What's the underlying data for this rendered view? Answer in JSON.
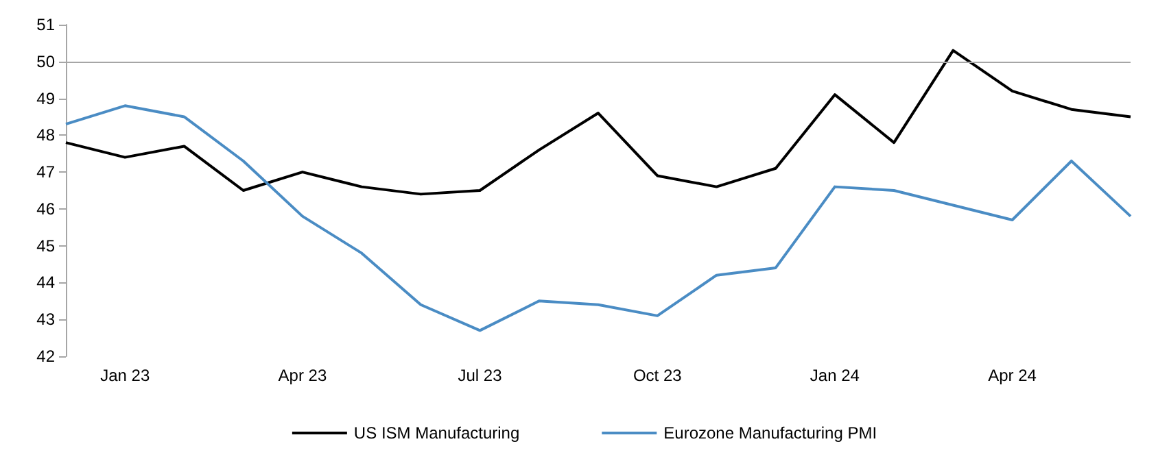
{
  "chart_data": {
    "type": "line",
    "categories": [
      null,
      "Jan 23",
      null,
      null,
      "Apr 23",
      null,
      null,
      "Jul 23",
      null,
      null,
      "Oct 23",
      null,
      null,
      "Jan 24",
      null,
      null,
      "Apr 24",
      null,
      null
    ],
    "series": [
      {
        "name": "US ISM Manufacturing",
        "color": "#000000",
        "values": [
          47.8,
          47.4,
          47.7,
          46.5,
          47.0,
          46.6,
          46.4,
          46.5,
          47.6,
          48.6,
          46.9,
          46.6,
          47.1,
          49.1,
          47.8,
          50.3,
          49.2,
          48.7,
          48.5
        ]
      },
      {
        "name": "Eurozone Manufacturing PMI",
        "color": "#4a8cc4",
        "values": [
          48.3,
          48.8,
          48.5,
          47.3,
          45.8,
          44.8,
          43.4,
          42.7,
          43.5,
          43.4,
          43.1,
          44.2,
          44.4,
          46.6,
          46.5,
          46.1,
          45.7,
          47.3,
          45.8
        ]
      }
    ],
    "ylim": [
      42,
      51
    ],
    "yticks": [
      42,
      43,
      44,
      45,
      46,
      47,
      48,
      49,
      50,
      51
    ],
    "ref_lines": [
      {
        "axis": "y",
        "value": 50,
        "color": "#a6a6a6"
      }
    ],
    "grid": false,
    "legend": "bottom",
    "marker": "none",
    "line_style": "solid"
  }
}
